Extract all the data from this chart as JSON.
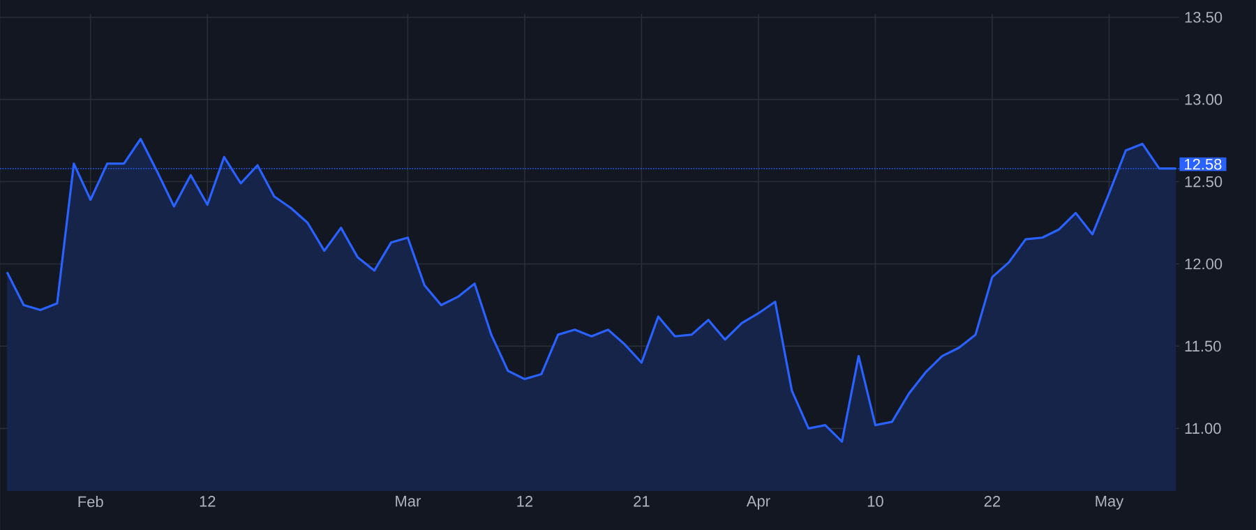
{
  "chart_data": {
    "type": "area",
    "categories": [
      null,
      null,
      null,
      null,
      null,
      "Feb",
      null,
      null,
      null,
      null,
      null,
      null,
      "12",
      null,
      null,
      null,
      null,
      null,
      null,
      null,
      null,
      null,
      null,
      null,
      "Mar",
      null,
      null,
      null,
      null,
      null,
      null,
      "12",
      null,
      null,
      null,
      null,
      null,
      null,
      "21",
      null,
      null,
      null,
      null,
      null,
      null,
      "Apr",
      null,
      null,
      null,
      null,
      null,
      null,
      "10",
      null,
      null,
      null,
      null,
      null,
      null,
      "22",
      null,
      null,
      null,
      null,
      null,
      null,
      "May",
      null,
      null,
      null,
      null
    ],
    "series": [
      {
        "color": "#2962ff",
        "values": [
          11.95,
          11.75,
          11.72,
          11.76,
          12.61,
          12.39,
          12.61,
          12.61,
          12.76,
          12.56,
          12.35,
          12.54,
          12.36,
          12.65,
          12.49,
          12.6,
          12.41,
          12.34,
          12.25,
          12.08,
          12.22,
          12.04,
          11.96,
          12.13,
          12.16,
          11.87,
          11.75,
          11.8,
          11.88,
          11.57,
          11.35,
          11.3,
          11.33,
          11.57,
          11.6,
          11.56,
          11.6,
          11.51,
          11.4,
          11.68,
          11.56,
          11.57,
          11.66,
          11.54,
          11.64,
          11.7,
          11.77,
          11.23,
          11.0,
          11.02,
          10.92,
          11.44,
          11.02,
          11.04,
          11.21,
          11.34,
          11.44,
          11.49,
          11.57,
          11.92,
          12.01,
          12.15,
          12.16,
          12.21,
          12.31,
          12.18,
          12.43,
          12.69,
          12.73,
          12.58,
          12.58
        ]
      }
    ],
    "ylim": [
      10.62,
      13.52
    ],
    "yticks": [
      {
        "value": 11,
        "label": "11.00"
      },
      {
        "value": 11.5,
        "label": "11.50"
      },
      {
        "value": 12,
        "label": "12.00"
      },
      {
        "value": 12.5,
        "label": "12.50"
      },
      {
        "value": 13,
        "label": "13.00"
      },
      {
        "value": 13.5,
        "label": "13.50"
      }
    ],
    "grid": true,
    "ref_lines": [
      {
        "axis": "y",
        "value": 12.58,
        "label": "12.58",
        "color": "#2962ff",
        "line_style": "dotted"
      }
    ]
  }
}
